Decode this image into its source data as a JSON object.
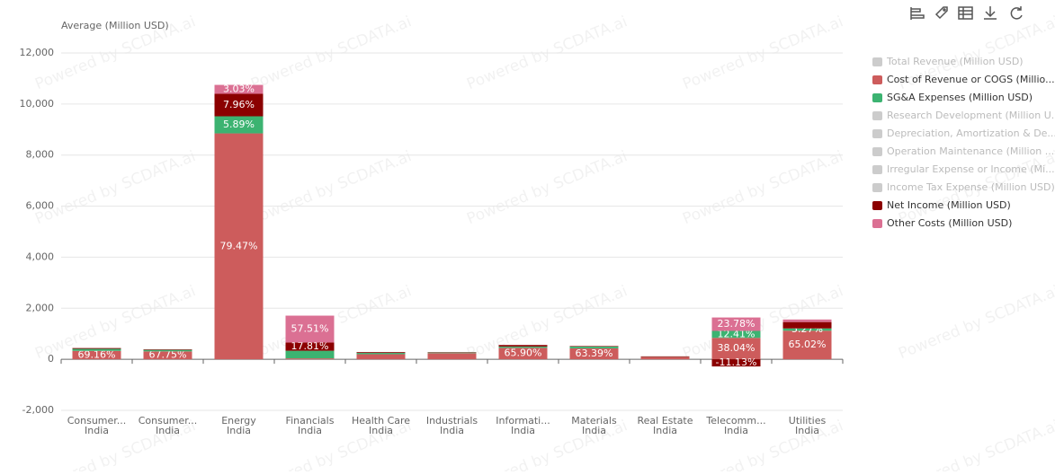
{
  "chart_data": {
    "type": "stacked_bar",
    "y_axis_title": "Average (Million USD)",
    "watermark": "Powered by SCDATA.ai",
    "categories": [
      "Consumer...",
      "Consumer...",
      "Energy",
      "Financials",
      "Health Care",
      "Industrials",
      "Informati...",
      "Materials",
      "Real Estate",
      "Telecomm...",
      "Utilities"
    ],
    "category_regions": [
      "India",
      "India",
      "India",
      "India",
      "India",
      "India",
      "India",
      "India",
      "India",
      "India",
      "India"
    ],
    "ylim": [
      -2000,
      12000
    ],
    "yticks": [
      {
        "value": -2000,
        "label": "-2,000"
      },
      0,
      {
        "value": 2000,
        "label": "2,000"
      },
      {
        "value": 4000,
        "label": "4,000"
      },
      {
        "value": 6000,
        "label": "6,000"
      },
      {
        "value": 8000,
        "label": "8,000"
      },
      {
        "value": 10000,
        "label": "10,000"
      },
      {
        "value": 12000,
        "label": "12,000"
      }
    ],
    "grid": true,
    "legend_position": "right",
    "series": [
      {
        "name": "Total Revenue (Million USD)",
        "color": "#cccccc",
        "visible": false
      },
      {
        "name": "Cost of Revenue or COGS (Millio...",
        "color": "#cd5c5c",
        "visible": true,
        "values": [
          330,
          310,
          8850,
          37,
          200,
          240,
          450,
          430,
          90,
          840,
          1120
        ],
        "data_labels": [
          "69.16%",
          "67.75%",
          "79.47%",
          null,
          null,
          null,
          "65.90%",
          "63.39%",
          null,
          "38.04%",
          "65.02%"
        ]
      },
      {
        "name": "SG&A Expenses (Million USD)",
        "color": "#3cb371",
        "visible": true,
        "values": [
          80,
          60,
          670,
          298,
          50,
          25,
          50,
          70,
          5,
          273,
          90
        ],
        "data_labels": [
          null,
          null,
          "5.89%",
          null,
          null,
          null,
          null,
          null,
          null,
          "12.41%",
          "5.27%"
        ]
      },
      {
        "name": "Research Development (Million U...",
        "color": "#cccccc",
        "visible": false
      },
      {
        "name": "Depreciation, Amortization & De...",
        "color": "#cccccc",
        "visible": false
      },
      {
        "name": "Operation Maintenance (Million ...",
        "color": "#cccccc",
        "visible": false
      },
      {
        "name": "Irregular Expense or Income (Mi...",
        "color": "#cccccc",
        "visible": false
      },
      {
        "name": "Income Tax Expense (Million USD)",
        "color": "#cccccc",
        "visible": false
      },
      {
        "name": "Net Income (Million USD)",
        "color": "#8b0000",
        "visible": true,
        "values": [
          30,
          20,
          880,
          325,
          30,
          15,
          60,
          20,
          20,
          -280,
          250
        ],
        "data_labels": [
          null,
          null,
          "7.96%",
          "17.81%",
          null,
          null,
          null,
          null,
          null,
          "-11.13%",
          null
        ]
      },
      {
        "name": "Other Costs (Million USD)",
        "color": "#db7093",
        "visible": true,
        "values": [
          0,
          0,
          350,
          1050,
          0,
          0,
          0,
          0,
          0,
          525,
          100
        ],
        "data_labels": [
          null,
          null,
          "3.03%",
          "57.51%",
          null,
          null,
          null,
          null,
          null,
          "23.78%",
          null
        ]
      }
    ]
  }
}
